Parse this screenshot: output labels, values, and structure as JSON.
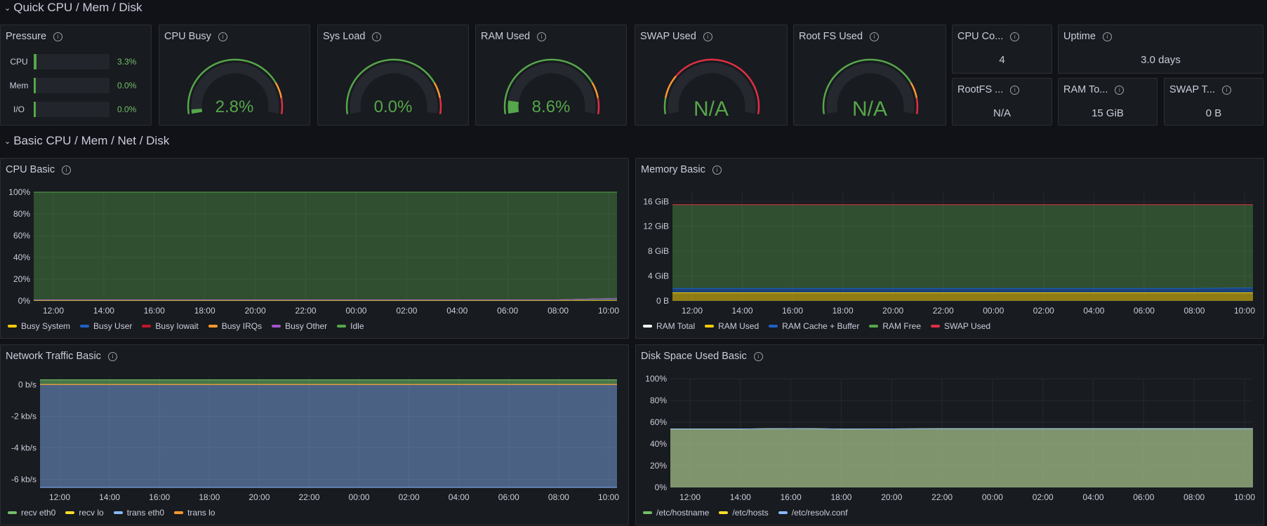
{
  "rows": {
    "quick": "Quick CPU / Mem / Disk",
    "basic": "Basic CPU / Mem / Net / Disk"
  },
  "pressure": {
    "title": "Pressure",
    "items": [
      {
        "label": "CPU",
        "value": "3.3%",
        "fraction": 0.033
      },
      {
        "label": "Mem",
        "value": "0.0%",
        "fraction": 0.0
      },
      {
        "label": "I/O",
        "value": "0.0%",
        "fraction": 0.0
      }
    ]
  },
  "gauges": {
    "cpu_busy": {
      "title": "CPU Busy",
      "value": "2.8%",
      "fraction": 0.028
    },
    "sys_load": {
      "title": "Sys Load",
      "value": "0.0%",
      "fraction": 0.0
    },
    "ram_used": {
      "title": "RAM Used",
      "value": "8.6%",
      "fraction": 0.086
    },
    "swap_used": {
      "title": "SWAP Used",
      "value": "N/A",
      "fraction": 0.0
    },
    "root_fs": {
      "title": "Root FS Used",
      "value": "N/A",
      "fraction": 0.0
    }
  },
  "stats": {
    "cpu_cores": {
      "title": "CPU Co...",
      "value": "4"
    },
    "uptime": {
      "title": "Uptime",
      "value": "3.0 days"
    },
    "rootfs_total": {
      "title": "RootFS ...",
      "value": "N/A"
    },
    "ram_total": {
      "title": "RAM To...",
      "value": "15 GiB"
    },
    "swap_total": {
      "title": "SWAP T...",
      "value": "0 B"
    }
  },
  "colors": {
    "green": "#56a64b",
    "yellow": "#f2cc0c",
    "red": "#e02f44",
    "orange": "#ff9830",
    "blue": "#1f60c4",
    "light_blue": "#8ab8ff",
    "purple": "#a352cc",
    "text": "#ccccdc"
  },
  "chart_data": [
    {
      "type": "area",
      "title": "CPU Basic",
      "x": [
        "12:00",
        "14:00",
        "16:00",
        "18:00",
        "20:00",
        "22:00",
        "00:00",
        "02:00",
        "04:00",
        "06:00",
        "08:00",
        "10:00"
      ],
      "y_ticks": [
        "0%",
        "20%",
        "40%",
        "60%",
        "80%",
        "100%"
      ],
      "ylim": [
        0,
        100
      ],
      "stacked": true,
      "series": [
        {
          "name": "Busy System",
          "color": "#f2cc0c",
          "values": [
            0.5,
            0.5,
            0.5,
            0.5,
            0.5,
            0.5,
            0.5,
            0.5,
            0.5,
            0.5,
            0.5,
            0.8
          ]
        },
        {
          "name": "Busy User",
          "color": "#1f60c4",
          "values": [
            0.5,
            0.5,
            0.5,
            0.5,
            0.5,
            0.5,
            0.5,
            0.5,
            0.5,
            0.5,
            0.5,
            1.0
          ]
        },
        {
          "name": "Busy Iowait",
          "color": "#c4162a",
          "values": [
            0,
            0,
            0,
            0,
            0,
            0,
            0,
            0,
            0,
            0,
            0,
            0.5
          ]
        },
        {
          "name": "Busy IRQs",
          "color": "#ff9830",
          "values": [
            0,
            0,
            0,
            0,
            0,
            0,
            0,
            0,
            0,
            0,
            0,
            0
          ]
        },
        {
          "name": "Busy Other",
          "color": "#a352cc",
          "values": [
            0,
            0,
            0,
            0,
            0,
            0,
            0,
            0,
            0,
            0,
            0,
            0
          ]
        },
        {
          "name": "Idle",
          "color": "#56a64b",
          "values": [
            99,
            99,
            99,
            99,
            99,
            99,
            99,
            99,
            99,
            99,
            99,
            97.7
          ]
        }
      ],
      "legend": "bottom-left"
    },
    {
      "type": "area",
      "title": "Memory Basic",
      "x": [
        "12:00",
        "14:00",
        "16:00",
        "18:00",
        "20:00",
        "22:00",
        "00:00",
        "02:00",
        "04:00",
        "06:00",
        "08:00",
        "10:00"
      ],
      "y_ticks": [
        "0 B",
        "4 GiB",
        "8 GiB",
        "12 GiB",
        "16 GiB"
      ],
      "ylim": [
        0,
        17.5
      ],
      "series": [
        {
          "name": "RAM Total",
          "color": "#ffffff",
          "values": [
            15.5,
            15.5,
            15.5,
            15.5,
            15.5,
            15.5,
            15.5,
            15.5,
            15.5,
            15.5,
            15.5,
            15.5
          ]
        },
        {
          "name": "RAM Used",
          "color": "#f2cc0c",
          "values": [
            1.3,
            1.3,
            1.3,
            1.3,
            1.3,
            1.3,
            1.3,
            1.3,
            1.3,
            1.3,
            1.3,
            1.3
          ]
        },
        {
          "name": "RAM Cache + Buffer",
          "color": "#1f60c4",
          "values": [
            0.7,
            0.7,
            0.7,
            0.7,
            0.7,
            0.7,
            0.7,
            0.7,
            0.7,
            0.7,
            0.7,
            0.8
          ]
        },
        {
          "name": "RAM Free",
          "color": "#56a64b",
          "values": [
            13.5,
            13.5,
            13.5,
            13.5,
            13.5,
            13.5,
            13.5,
            13.5,
            13.5,
            13.5,
            13.5,
            13.4
          ]
        },
        {
          "name": "SWAP Used",
          "color": "#e02f44",
          "values": [
            0,
            0,
            0,
            0,
            0,
            0,
            0,
            0,
            0,
            0,
            0,
            0
          ]
        }
      ],
      "legend": "bottom-left"
    },
    {
      "type": "area",
      "title": "Network Traffic Basic",
      "x": [
        "12:00",
        "14:00",
        "16:00",
        "18:00",
        "20:00",
        "22:00",
        "00:00",
        "02:00",
        "04:00",
        "06:00",
        "08:00",
        "10:00"
      ],
      "y_ticks": [
        "-6 kb/s",
        "-4 kb/s",
        "-2 kb/s",
        "0 b/s"
      ],
      "ylim": [
        -6.5,
        0.5
      ],
      "series": [
        {
          "name": "recv eth0",
          "color": "#73bf69",
          "values": [
            0.3,
            0.3,
            0.3,
            0.3,
            0.3,
            0.3,
            0.3,
            0.3,
            0.3,
            0.3,
            0.3,
            0.3
          ]
        },
        {
          "name": "recv lo",
          "color": "#fade2a",
          "values": [
            0,
            0,
            0,
            0,
            0,
            0,
            0,
            0,
            0,
            0,
            0,
            0
          ]
        },
        {
          "name": "trans eth0",
          "color": "#8ab8ff",
          "values": [
            -6.5,
            -6.5,
            -6.5,
            -6.5,
            -6.5,
            -6.5,
            -6.5,
            -6.5,
            -6.5,
            -6.5,
            -6.5,
            -6.5
          ]
        },
        {
          "name": "trans lo",
          "color": "#ff9830",
          "values": [
            0,
            0,
            0,
            0,
            0,
            0,
            0,
            0,
            0,
            0,
            0,
            0
          ]
        }
      ],
      "legend": "bottom-left"
    },
    {
      "type": "area",
      "title": "Disk Space Used Basic",
      "x": [
        "12:00",
        "14:00",
        "16:00",
        "18:00",
        "20:00",
        "22:00",
        "00:00",
        "02:00",
        "04:00",
        "06:00",
        "08:00",
        "10:00"
      ],
      "y_ticks": [
        "0%",
        "20%",
        "40%",
        "60%",
        "80%",
        "100%"
      ],
      "ylim": [
        0,
        100
      ],
      "series": [
        {
          "name": "/etc/hostname",
          "color": "#73bf69",
          "values": [
            53.8,
            53.8,
            54.2,
            53.8,
            53.9,
            54.0,
            54.0,
            54.0,
            54.0,
            54.0,
            54.0,
            54.0
          ]
        },
        {
          "name": "/etc/hosts",
          "color": "#fade2a",
          "values": [
            53.8,
            53.8,
            54.2,
            53.8,
            53.9,
            54.0,
            54.0,
            54.0,
            54.0,
            54.0,
            54.0,
            54.0
          ]
        },
        {
          "name": "/etc/resolv.conf",
          "color": "#8ab8ff",
          "values": [
            53.8,
            53.8,
            54.2,
            53.8,
            53.9,
            54.0,
            54.0,
            54.0,
            54.0,
            54.0,
            54.0,
            54.0
          ]
        }
      ],
      "legend": "bottom-left"
    }
  ]
}
